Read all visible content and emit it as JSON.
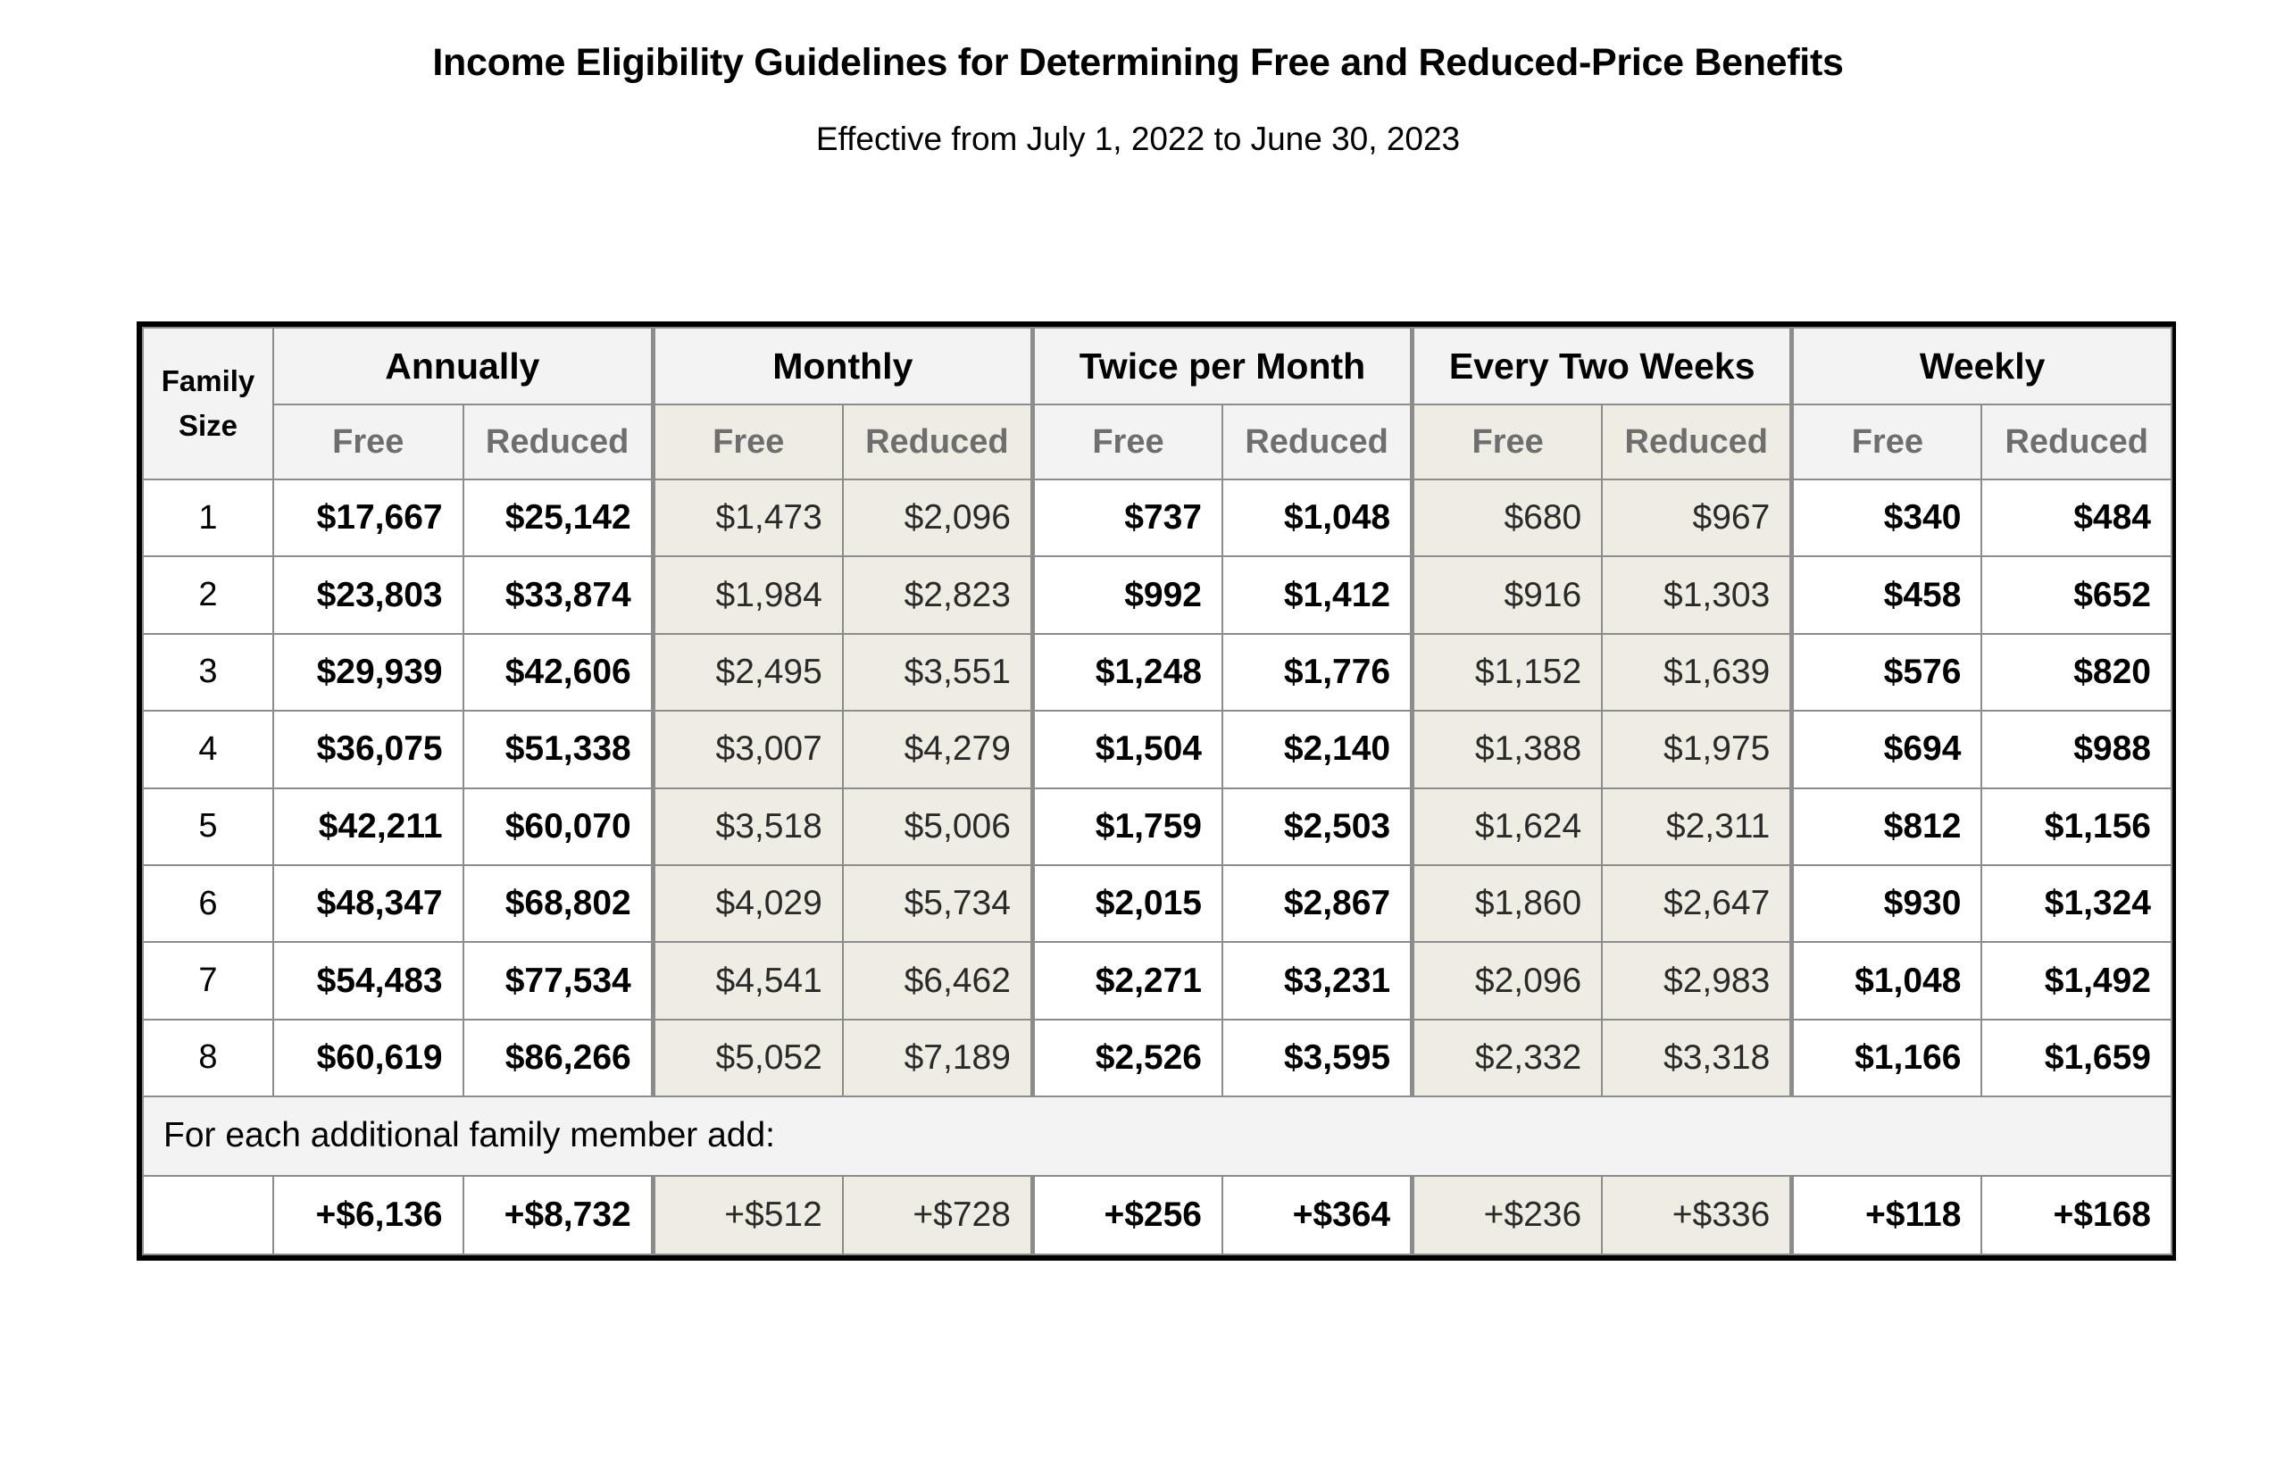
{
  "title": "Income Eligibility Guidelines for Determining Free and Reduced-Price Benefits",
  "subtitle": "Effective from July 1, 2022 to June 30, 2023",
  "table": {
    "family_size_header_line1": "Family",
    "family_size_header_line2": "Size",
    "groups": [
      "Annually",
      "Monthly",
      "Twice per Month",
      "Every Two Weeks",
      "Weekly"
    ],
    "subheaders": [
      "Free",
      "Reduced",
      "Free",
      "Reduced",
      "Free",
      "Reduced",
      "Free",
      "Reduced",
      "Free",
      "Reduced"
    ],
    "rows": [
      {
        "size": "1",
        "values": [
          "$17,667",
          "$25,142",
          "$1,473",
          "$2,096",
          "$737",
          "$1,048",
          "$680",
          "$967",
          "$340",
          "$484"
        ]
      },
      {
        "size": "2",
        "values": [
          "$23,803",
          "$33,874",
          "$1,984",
          "$2,823",
          "$992",
          "$1,412",
          "$916",
          "$1,303",
          "$458",
          "$652"
        ]
      },
      {
        "size": "3",
        "values": [
          "$29,939",
          "$42,606",
          "$2,495",
          "$3,551",
          "$1,248",
          "$1,776",
          "$1,152",
          "$1,639",
          "$576",
          "$820"
        ]
      },
      {
        "size": "4",
        "values": [
          "$36,075",
          "$51,338",
          "$3,007",
          "$4,279",
          "$1,504",
          "$2,140",
          "$1,388",
          "$1,975",
          "$694",
          "$988"
        ]
      },
      {
        "size": "5",
        "values": [
          "$42,211",
          "$60,070",
          "$3,518",
          "$5,006",
          "$1,759",
          "$2,503",
          "$1,624",
          "$2,311",
          "$812",
          "$1,156"
        ]
      },
      {
        "size": "6",
        "values": [
          "$48,347",
          "$68,802",
          "$4,029",
          "$5,734",
          "$2,015",
          "$2,867",
          "$1,860",
          "$2,647",
          "$930",
          "$1,324"
        ]
      },
      {
        "size": "7",
        "values": [
          "$54,483",
          "$77,534",
          "$4,541",
          "$6,462",
          "$2,271",
          "$3,231",
          "$2,096",
          "$2,983",
          "$1,048",
          "$1,492"
        ]
      },
      {
        "size": "8",
        "values": [
          "$60,619",
          "$86,266",
          "$5,052",
          "$7,189",
          "$2,526",
          "$3,595",
          "$2,332",
          "$3,318",
          "$1,166",
          "$1,659"
        ]
      }
    ],
    "additional_note": "For each additional family member add:",
    "additional_values": [
      "+$6,136",
      "+$8,732",
      "+$512",
      "+$728",
      "+$256",
      "+$364",
      "+$236",
      "+$336",
      "+$118",
      "+$168"
    ]
  }
}
